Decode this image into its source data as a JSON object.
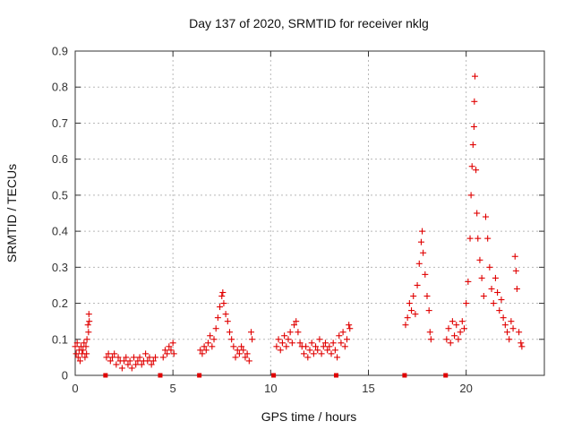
{
  "chart_data": {
    "type": "scatter",
    "title": "Day 137 of 2020, SRMTID for receiver nklg",
    "xlabel": "GPS time / hours",
    "ylabel": "SRMTID / TECUs",
    "xlim": [
      0,
      24
    ],
    "ylim": [
      0,
      0.9
    ],
    "x_ticks": [
      0,
      5,
      10,
      15,
      20
    ],
    "x_tick_labels": [
      "0",
      "5",
      "10",
      "15",
      "20"
    ],
    "y_ticks": [
      0,
      0.1,
      0.2,
      0.3,
      0.4,
      0.5,
      0.6,
      0.7,
      0.8,
      0.9
    ],
    "y_tick_labels": [
      "0",
      "0.1",
      "0.2",
      "0.3",
      "0.4",
      "0.5",
      "0.6",
      "0.7",
      "0.8",
      "0.9"
    ],
    "grid": true,
    "marker": "+",
    "color": "#e00000",
    "series": [
      {
        "name": "SRMTID",
        "points": [
          [
            0.0,
            0.08
          ],
          [
            0.05,
            0.06
          ],
          [
            0.1,
            0.09
          ],
          [
            0.15,
            0.05
          ],
          [
            0.2,
            0.07
          ],
          [
            0.25,
            0.04
          ],
          [
            0.3,
            0.08
          ],
          [
            0.35,
            0.06
          ],
          [
            0.4,
            0.07
          ],
          [
            0.45,
            0.09
          ],
          [
            0.5,
            0.05
          ],
          [
            0.55,
            0.08
          ],
          [
            0.6,
            0.1
          ],
          [
            0.65,
            0.14
          ],
          [
            0.7,
            0.17
          ],
          [
            0.72,
            0.15
          ],
          [
            0.68,
            0.12
          ],
          [
            0.58,
            0.06
          ],
          [
            1.6,
            0.05
          ],
          [
            1.7,
            0.06
          ],
          [
            1.8,
            0.04
          ],
          [
            1.9,
            0.05
          ],
          [
            2.0,
            0.06
          ],
          [
            2.1,
            0.03
          ],
          [
            2.2,
            0.05
          ],
          [
            2.3,
            0.04
          ],
          [
            2.4,
            0.02
          ],
          [
            2.5,
            0.04
          ],
          [
            2.6,
            0.05
          ],
          [
            2.7,
            0.03
          ],
          [
            2.8,
            0.04
          ],
          [
            2.9,
            0.02
          ],
          [
            3.0,
            0.05
          ],
          [
            3.1,
            0.03
          ],
          [
            3.2,
            0.04
          ],
          [
            3.3,
            0.05
          ],
          [
            3.4,
            0.03
          ],
          [
            3.5,
            0.04
          ],
          [
            3.6,
            0.06
          ],
          [
            3.7,
            0.04
          ],
          [
            3.8,
            0.05
          ],
          [
            3.9,
            0.03
          ],
          [
            4.0,
            0.04
          ],
          [
            4.1,
            0.05
          ],
          [
            4.5,
            0.05
          ],
          [
            4.6,
            0.07
          ],
          [
            4.7,
            0.06
          ],
          [
            4.8,
            0.08
          ],
          [
            4.9,
            0.07
          ],
          [
            5.0,
            0.09
          ],
          [
            5.05,
            0.06
          ],
          [
            6.4,
            0.07
          ],
          [
            6.5,
            0.06
          ],
          [
            6.6,
            0.08
          ],
          [
            6.7,
            0.07
          ],
          [
            6.8,
            0.09
          ],
          [
            6.9,
            0.11
          ],
          [
            7.0,
            0.08
          ],
          [
            7.1,
            0.1
          ],
          [
            7.2,
            0.13
          ],
          [
            7.3,
            0.16
          ],
          [
            7.4,
            0.19
          ],
          [
            7.5,
            0.22
          ],
          [
            7.55,
            0.23
          ],
          [
            7.6,
            0.2
          ],
          [
            7.7,
            0.17
          ],
          [
            7.8,
            0.15
          ],
          [
            7.9,
            0.12
          ],
          [
            8.0,
            0.1
          ],
          [
            8.1,
            0.08
          ],
          [
            8.2,
            0.05
          ],
          [
            8.3,
            0.07
          ],
          [
            8.4,
            0.06
          ],
          [
            8.5,
            0.08
          ],
          [
            8.6,
            0.07
          ],
          [
            8.7,
            0.05
          ],
          [
            8.8,
            0.06
          ],
          [
            8.9,
            0.04
          ],
          [
            9.0,
            0.12
          ],
          [
            9.05,
            0.1
          ],
          [
            10.3,
            0.08
          ],
          [
            10.4,
            0.1
          ],
          [
            10.5,
            0.07
          ],
          [
            10.6,
            0.09
          ],
          [
            10.7,
            0.11
          ],
          [
            10.8,
            0.08
          ],
          [
            10.9,
            0.1
          ],
          [
            11.0,
            0.12
          ],
          [
            11.1,
            0.09
          ],
          [
            11.2,
            0.14
          ],
          [
            11.3,
            0.15
          ],
          [
            11.4,
            0.12
          ],
          [
            11.5,
            0.09
          ],
          [
            11.6,
            0.08
          ],
          [
            11.7,
            0.06
          ],
          [
            11.8,
            0.08
          ],
          [
            11.9,
            0.05
          ],
          [
            12.0,
            0.07
          ],
          [
            12.1,
            0.09
          ],
          [
            12.2,
            0.06
          ],
          [
            12.3,
            0.08
          ],
          [
            12.4,
            0.07
          ],
          [
            12.5,
            0.1
          ],
          [
            12.6,
            0.06
          ],
          [
            12.7,
            0.08
          ],
          [
            12.8,
            0.09
          ],
          [
            12.9,
            0.07
          ],
          [
            13.0,
            0.08
          ],
          [
            13.1,
            0.06
          ],
          [
            13.2,
            0.09
          ],
          [
            13.3,
            0.07
          ],
          [
            13.4,
            0.05
          ],
          [
            13.5,
            0.11
          ],
          [
            13.6,
            0.09
          ],
          [
            13.7,
            0.12
          ],
          [
            13.8,
            0.08
          ],
          [
            13.9,
            0.1
          ],
          [
            14.0,
            0.14
          ],
          [
            14.05,
            0.13
          ],
          [
            16.9,
            0.14
          ],
          [
            17.0,
            0.16
          ],
          [
            17.1,
            0.2
          ],
          [
            17.2,
            0.18
          ],
          [
            17.3,
            0.22
          ],
          [
            17.4,
            0.17
          ],
          [
            17.5,
            0.25
          ],
          [
            17.6,
            0.31
          ],
          [
            17.7,
            0.37
          ],
          [
            17.75,
            0.4
          ],
          [
            17.8,
            0.34
          ],
          [
            17.9,
            0.28
          ],
          [
            18.0,
            0.22
          ],
          [
            18.1,
            0.18
          ],
          [
            18.15,
            0.12
          ],
          [
            18.2,
            0.1
          ],
          [
            19.0,
            0.1
          ],
          [
            19.1,
            0.13
          ],
          [
            19.2,
            0.09
          ],
          [
            19.3,
            0.15
          ],
          [
            19.4,
            0.11
          ],
          [
            19.5,
            0.14
          ],
          [
            19.6,
            0.1
          ],
          [
            19.7,
            0.12
          ],
          [
            19.8,
            0.15
          ],
          [
            19.9,
            0.13
          ],
          [
            20.0,
            0.2
          ],
          [
            20.1,
            0.26
          ],
          [
            20.2,
            0.38
          ],
          [
            20.25,
            0.5
          ],
          [
            20.3,
            0.58
          ],
          [
            20.35,
            0.64
          ],
          [
            20.4,
            0.69
          ],
          [
            20.42,
            0.76
          ],
          [
            20.45,
            0.83
          ],
          [
            20.5,
            0.57
          ],
          [
            20.55,
            0.45
          ],
          [
            20.6,
            0.38
          ],
          [
            20.7,
            0.32
          ],
          [
            20.8,
            0.27
          ],
          [
            20.9,
            0.22
          ],
          [
            21.0,
            0.44
          ],
          [
            21.1,
            0.38
          ],
          [
            21.2,
            0.3
          ],
          [
            21.3,
            0.24
          ],
          [
            21.4,
            0.2
          ],
          [
            21.5,
            0.27
          ],
          [
            21.6,
            0.23
          ],
          [
            21.7,
            0.18
          ],
          [
            21.8,
            0.21
          ],
          [
            21.9,
            0.16
          ],
          [
            22.0,
            0.14
          ],
          [
            22.1,
            0.12
          ],
          [
            22.2,
            0.1
          ],
          [
            22.3,
            0.15
          ],
          [
            22.4,
            0.13
          ],
          [
            22.5,
            0.33
          ],
          [
            22.55,
            0.29
          ],
          [
            22.6,
            0.24
          ],
          [
            22.7,
            0.12
          ],
          [
            22.8,
            0.09
          ],
          [
            22.85,
            0.08
          ]
        ]
      }
    ],
    "zero_markers": [
      1.55,
      4.35,
      6.35,
      10.15,
      13.35,
      16.85,
      18.95
    ]
  }
}
